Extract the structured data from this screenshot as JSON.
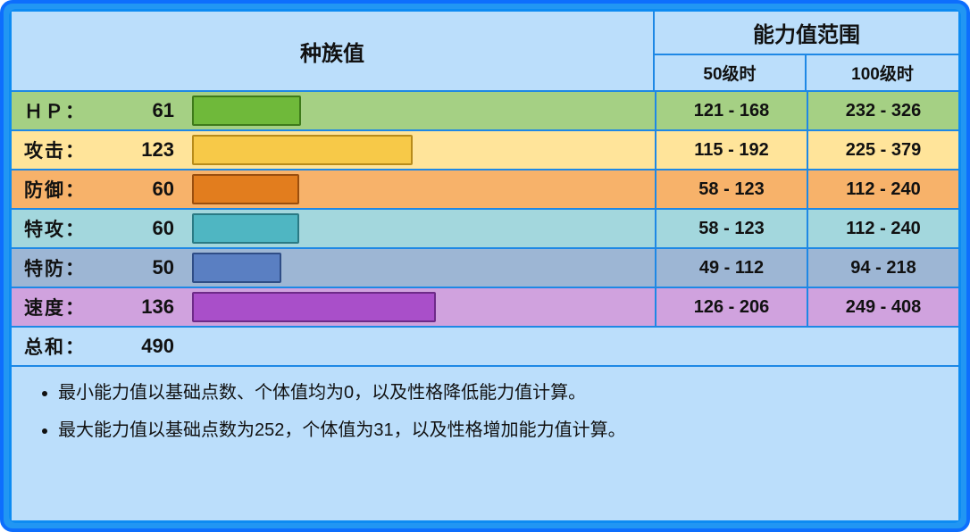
{
  "header": {
    "species_label": "种族值",
    "range_label": "能力值范围",
    "lv50_label": "50级时",
    "lv100_label": "100级时"
  },
  "max_base": 255,
  "stats": [
    {
      "key": "hp",
      "label": "ＨＰ：",
      "base": 61,
      "lv50": "121 - 168",
      "lv100": "232 - 326",
      "row_bg": "#a5d084",
      "bar_color": "#6fb93a",
      "bar_border": "#3e7a1a"
    },
    {
      "key": "atk",
      "label": "攻击：",
      "base": 123,
      "lv50": "115 - 192",
      "lv100": "225 - 379",
      "row_bg": "#ffe49a",
      "bar_color": "#f7c948",
      "bar_border": "#b88b1a"
    },
    {
      "key": "def",
      "label": "防御：",
      "base": 60,
      "lv50": "58 - 123",
      "lv100": "112 - 240",
      "row_bg": "#f7b26a",
      "bar_color": "#e27d1e",
      "bar_border": "#9a4e0e"
    },
    {
      "key": "spa",
      "label": "特攻：",
      "base": 60,
      "lv50": "58 - 123",
      "lv100": "112 - 240",
      "row_bg": "#a3d7dd",
      "bar_color": "#4fb6c2",
      "bar_border": "#2a7a84"
    },
    {
      "key": "spd",
      "label": "特防：",
      "base": 50,
      "lv50": "49 - 112",
      "lv100": "94 - 218",
      "row_bg": "#9db6d4",
      "bar_color": "#5a7fc2",
      "bar_border": "#2f4d86"
    },
    {
      "key": "spe",
      "label": "速度：",
      "base": 136,
      "lv50": "126 - 206",
      "lv100": "249 - 408",
      "row_bg": "#d0a2de",
      "bar_color": "#a94fc9",
      "bar_border": "#6e2a88"
    }
  ],
  "total": {
    "label": "总和：",
    "value": 490
  },
  "notes": [
    "最小能力值以基础点数、个体值均为0，以及性格降低能力值计算。",
    "最大能力值以基础点数为252，个体值为31，以及性格增加能力值计算。"
  ],
  "colors": {
    "outer_border": "#0d6efd",
    "outer_bg": "#2196f3",
    "inner_bg": "#bbdefb",
    "grid_line": "#1e88e5",
    "text": "#111111"
  }
}
